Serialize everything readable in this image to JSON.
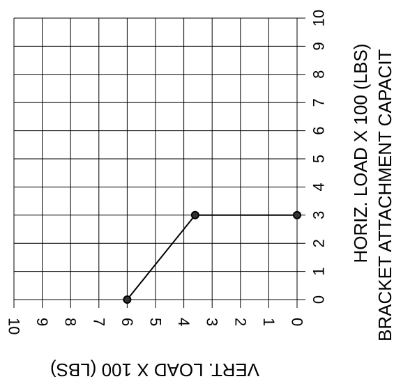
{
  "chart_data": {
    "type": "line",
    "title": "BRACKET ATTACHMENT CAPACIT",
    "xlabel": "VERT. LOAD X 100 (LBS)",
    "ylabel": "HORIZ. LOAD X 100 (LBS)",
    "xlim": [
      10,
      0
    ],
    "ylim": [
      0,
      10
    ],
    "x_ticks": [
      "10",
      "9",
      "8",
      "7",
      "6",
      "5",
      "4",
      "3",
      "2",
      "1",
      "0"
    ],
    "y_ticks": [
      "0",
      "1",
      "2",
      "3",
      "4",
      "5",
      "6",
      "7",
      "8",
      "9",
      "10"
    ],
    "grid": true,
    "series": [
      {
        "x": [
          6,
          3.6,
          0
        ],
        "y": [
          0,
          3,
          3
        ]
      }
    ]
  }
}
